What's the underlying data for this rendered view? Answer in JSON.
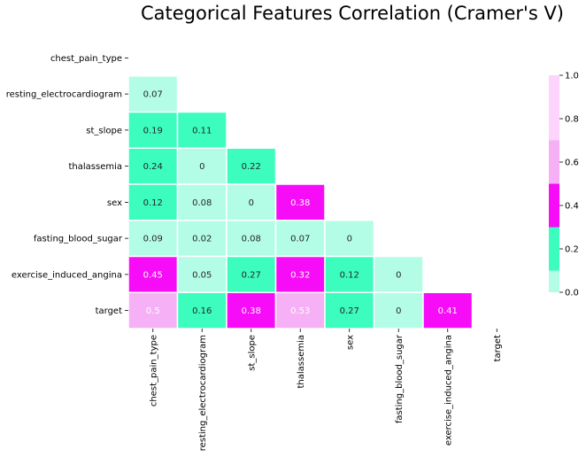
{
  "chart_data": {
    "type": "heatmap",
    "title": "Categorical Features Correlation (Cramer's V)",
    "labels": [
      "chest_pain_type",
      "resting_electrocardiogram",
      "st_slope",
      "thalassemia",
      "sex",
      "fasting_blood_sugar",
      "exercise_induced_angina",
      "target"
    ],
    "mask": "upper-triangle-including-diagonal",
    "values": [
      [
        null,
        null,
        null,
        null,
        null,
        null,
        null,
        null
      ],
      [
        0.07,
        null,
        null,
        null,
        null,
        null,
        null,
        null
      ],
      [
        0.19,
        0.11,
        null,
        null,
        null,
        null,
        null,
        null
      ],
      [
        0.24,
        0,
        0.22,
        null,
        null,
        null,
        null,
        null
      ],
      [
        0.12,
        0.08,
        0,
        0.38,
        null,
        null,
        null,
        null
      ],
      [
        0.09,
        0.02,
        0.08,
        0.07,
        0,
        null,
        null,
        null
      ],
      [
        0.45,
        0.05,
        0.27,
        0.32,
        0.12,
        0,
        null,
        null
      ],
      [
        0.5,
        0.16,
        0.38,
        0.53,
        0.27,
        0,
        0.41,
        null
      ]
    ],
    "colorbar": {
      "range": [
        0,
        1
      ],
      "ticks": [
        "0.0",
        "0.2",
        "0.4",
        "0.6",
        "0.8",
        "1.0"
      ],
      "bins": [
        {
          "upto": 0.1,
          "color": "#b3fde6"
        },
        {
          "upto": 0.2,
          "color": "#3cfdbe"
        },
        {
          "upto": 0.3,
          "color": "#3cfdbe"
        },
        {
          "upto": 0.4,
          "color": "#f60cf6"
        },
        {
          "upto": 0.5,
          "color": "#f60cf6"
        },
        {
          "upto": 0.6,
          "color": "#f6b0f6"
        },
        {
          "upto": 0.7,
          "color": "#f6b0f6"
        },
        {
          "upto": 1.0,
          "color": "#fcd4fc"
        }
      ]
    },
    "cell_colors": {
      "low": "#b3fde6",
      "mid": "#3cfdbe",
      "high": "#f60cf6"
    },
    "text_colors": {
      "on_light": "#262626",
      "on_dark": "#ffffff"
    }
  }
}
